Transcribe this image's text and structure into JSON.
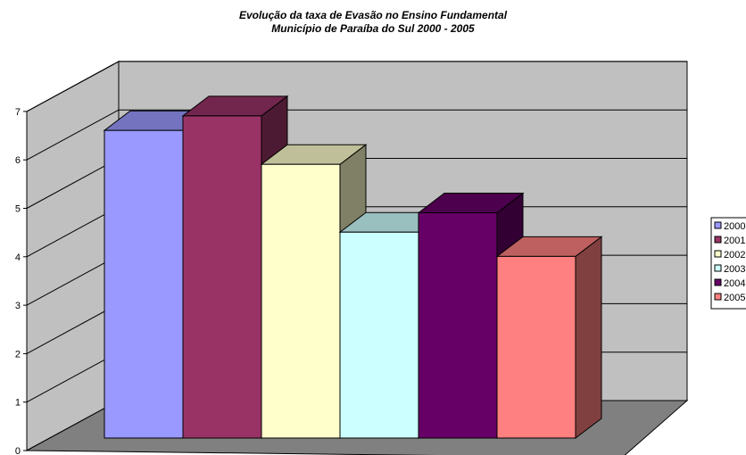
{
  "chart_data": {
    "type": "bar",
    "title": "Evolução da taxa de Evasão no Ensino Fundamental",
    "subtitle": "Município de Paraíba do Sul 2000 - 2005",
    "xlabel": "",
    "ylabel": "",
    "ylim": [
      0,
      7
    ],
    "yticks": [
      "0",
      "1",
      "2",
      "3",
      "4",
      "5",
      "6",
      "7"
    ],
    "grid": true,
    "legend_position": "right",
    "series": [
      {
        "name": "2000",
        "values": [
          6.35
        ],
        "color": "#9999FF"
      },
      {
        "name": "2001",
        "values": [
          6.65
        ],
        "color": "#993366"
      },
      {
        "name": "2002",
        "values": [
          5.65
        ],
        "color": "#FFFFCC"
      },
      {
        "name": "2003",
        "values": [
          4.25
        ],
        "color": "#CCFFFF"
      },
      {
        "name": "2004",
        "values": [
          4.65
        ],
        "color": "#660066"
      },
      {
        "name": "2005",
        "values": [
          3.75
        ],
        "color": "#FF8080"
      }
    ],
    "wall_color": "#C0C0C0",
    "floor_color": "#808080"
  }
}
